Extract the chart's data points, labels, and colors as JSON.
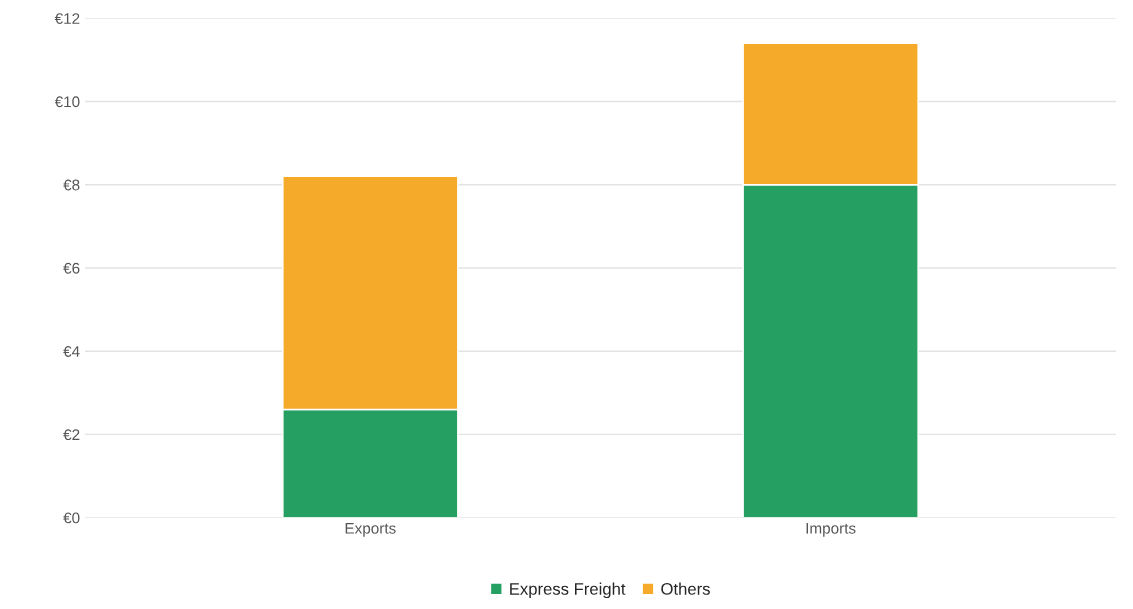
{
  "chart_data": {
    "type": "bar",
    "stacked": true,
    "categories": [
      "Exports",
      "Imports"
    ],
    "series": [
      {
        "name": "Express Freight",
        "color": "#25a062",
        "values": [
          2.6,
          8.0
        ]
      },
      {
        "name": "Others",
        "color": "#f6aa2a",
        "values": [
          5.6,
          3.4
        ]
      }
    ],
    "ylim": [
      0,
      12
    ],
    "yticks": [
      {
        "value": 0,
        "label": "€0"
      },
      {
        "value": 2,
        "label": "€2"
      },
      {
        "value": 4,
        "label": "€4"
      },
      {
        "value": 6,
        "label": "€6"
      },
      {
        "value": 8,
        "label": "€8"
      },
      {
        "value": 10,
        "label": "€10"
      },
      {
        "value": 12,
        "label": "€12"
      }
    ],
    "grid": "y",
    "legend": "bottom"
  }
}
